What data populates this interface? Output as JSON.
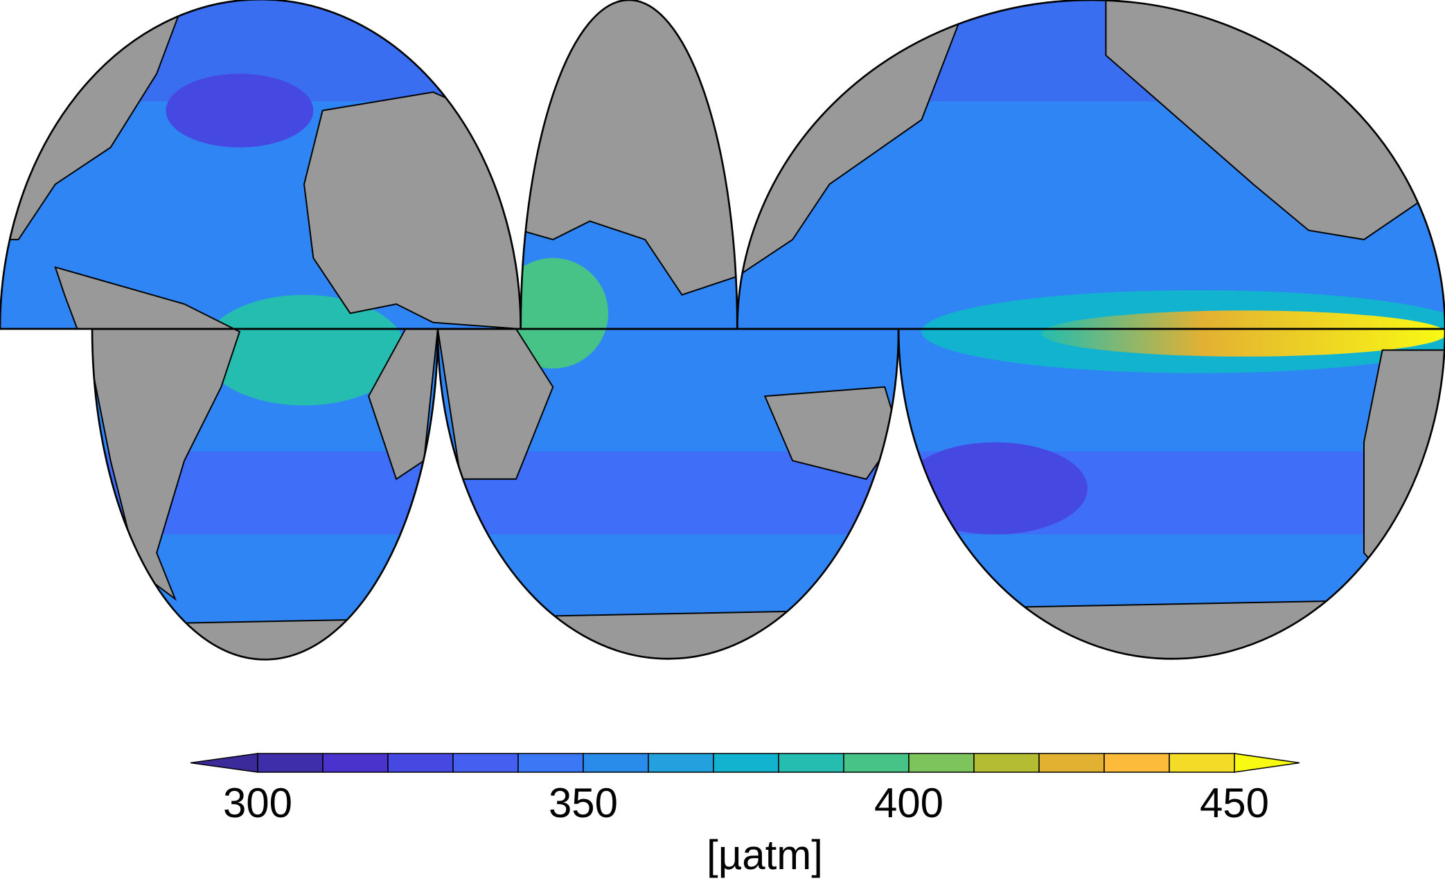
{
  "colorbar": {
    "label": "[µatm]",
    "min": 300,
    "max": 450,
    "levels": [
      300,
      310,
      320,
      330,
      340,
      350,
      360,
      370,
      380,
      390,
      400,
      410,
      420,
      430,
      440,
      450
    ],
    "colors": [
      "#3f2eaa",
      "#4a33cd",
      "#4648e2",
      "#4560f0",
      "#3a78f5",
      "#2a8cea",
      "#23a0de",
      "#12b3ce",
      "#24bdaf",
      "#48c388",
      "#7ec45c",
      "#b4bd32",
      "#e3b132",
      "#fcbb3a",
      "#f4db28"
    ],
    "under_color": "#3a2a9a",
    "over_color": "#f9fa14",
    "ticks": [
      300,
      350,
      400,
      450
    ]
  }
}
